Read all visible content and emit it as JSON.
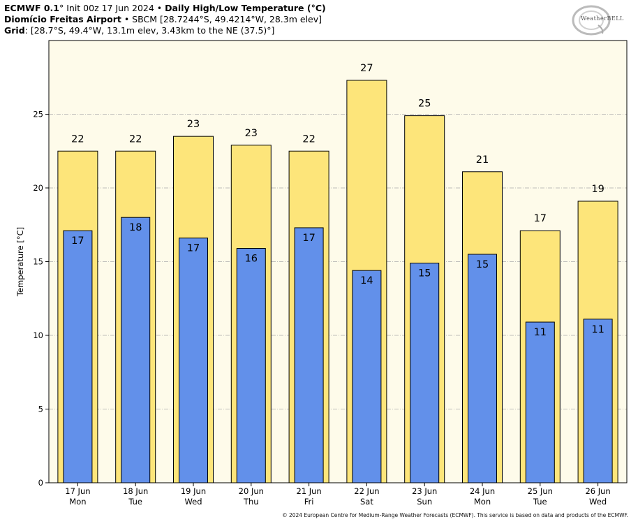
{
  "header": {
    "line1_bold": "ECMWF 0.1",
    "line1_degree": "°",
    "line1_init": " Init 00z 17 Jun 2024 • ",
    "line1_title": "Daily High/Low Temperature (°C)",
    "line2_bold": "Diomício Freitas Airport",
    "line2_rest": " • SBCM [28.7244°S, 49.4214°W, 28.3m elev]",
    "line3_bold": "Grid",
    "line3_rest": ": [28.7°S, 49.4°W, 13.1m elev, 3.43km to the NE (37.5)°]"
  },
  "logo": {
    "text": "WeatherBELL"
  },
  "copyright": "© 2024 European Centre for Medium-Range Weather Forecasts (ECMWF). This service is based on data and products of the ECMWF.",
  "chart_data": {
    "type": "bar",
    "title": "Daily High/Low Temperature (°C)",
    "ylabel": "Temperature [°C]",
    "xlabel": "",
    "ylim": [
      0,
      30
    ],
    "yticks": [
      0,
      5,
      10,
      15,
      20,
      25
    ],
    "grid": "horizontal dash-dot",
    "categories": [
      "17 Jun",
      "18 Jun",
      "19 Jun",
      "20 Jun",
      "21 Jun",
      "22 Jun",
      "23 Jun",
      "24 Jun",
      "25 Jun",
      "26 Jun"
    ],
    "weekdays": [
      "Mon",
      "Tue",
      "Wed",
      "Thu",
      "Fri",
      "Sat",
      "Sun",
      "Mon",
      "Tue",
      "Wed"
    ],
    "series": [
      {
        "name": "High",
        "color": "#fde57a",
        "values": [
          22.5,
          22.5,
          23.5,
          22.9,
          22.5,
          27.3,
          24.9,
          21.1,
          17.1,
          19.1
        ],
        "labels": [
          "22",
          "22",
          "23",
          "23",
          "22",
          "27",
          "25",
          "21",
          "17",
          "19"
        ]
      },
      {
        "name": "Low",
        "color": "#6290ea",
        "values": [
          17.1,
          18.0,
          16.6,
          15.9,
          17.3,
          14.4,
          14.9,
          15.5,
          10.9,
          11.1
        ],
        "labels": [
          "17",
          "18",
          "17",
          "16",
          "17",
          "14",
          "15",
          "15",
          "11",
          "11"
        ]
      }
    ],
    "plot_background": "#fefbea"
  }
}
